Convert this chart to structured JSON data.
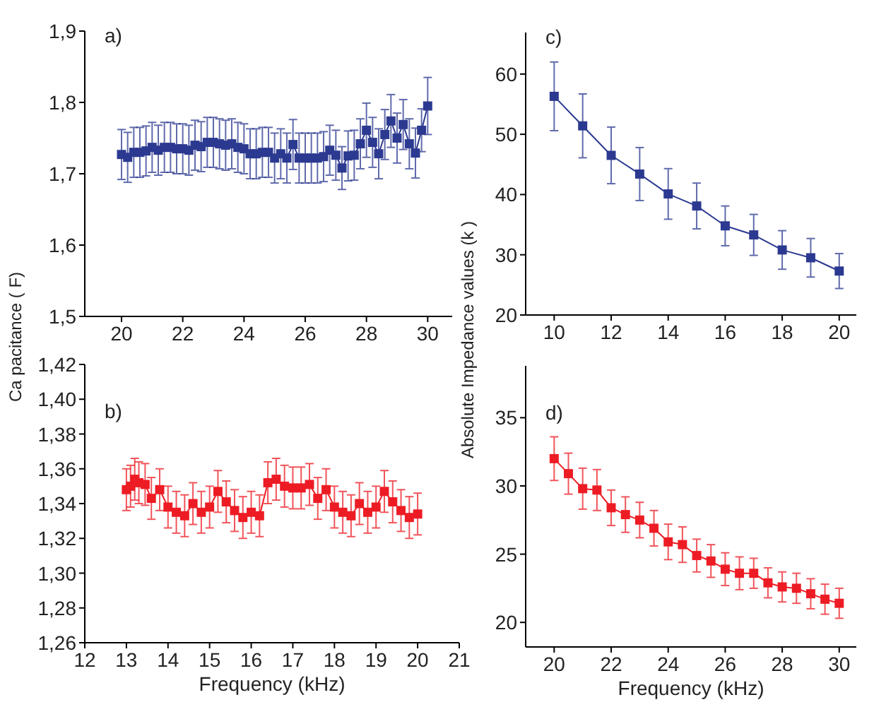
{
  "chart_data": [
    {
      "type": "line",
      "ylabel": "Ca pacitance ( F)",
      "annotations": [
        "a)"
      ],
      "marker": "square",
      "line_style": "solid",
      "grid": false,
      "xlim": [
        18.8,
        30.8
      ],
      "ylim": [
        1.5,
        1.9
      ],
      "xticks": [
        20,
        22,
        24,
        26,
        28,
        30
      ],
      "yticks": [
        {
          "value": 1.5,
          "label": "1,5"
        },
        {
          "value": 1.6,
          "label": "1,6"
        },
        {
          "value": 1.7,
          "label": "1,7"
        },
        {
          "value": 1.8,
          "label": "1,8"
        },
        {
          "value": 1.9,
          "label": "1,9"
        }
      ],
      "series": [
        {
          "color": "#2b3990",
          "x": [
            20.0,
            20.2,
            20.4,
            20.6,
            20.8,
            21.0,
            21.2,
            21.4,
            21.6,
            21.8,
            22.0,
            22.2,
            22.4,
            22.6,
            22.8,
            23.0,
            23.2,
            23.4,
            23.6,
            23.8,
            24.0,
            24.2,
            24.4,
            24.6,
            24.8,
            25.0,
            25.2,
            25.4,
            25.6,
            25.8,
            26.0,
            26.2,
            26.4,
            26.6,
            26.8,
            27.0,
            27.2,
            27.4,
            27.6,
            27.8,
            28.0,
            28.2,
            28.4,
            28.6,
            28.8,
            29.0,
            29.2,
            29.4,
            29.6,
            29.8,
            30.0
          ],
          "values": [
            1.727,
            1.723,
            1.73,
            1.73,
            1.732,
            1.737,
            1.733,
            1.737,
            1.737,
            1.735,
            1.735,
            1.733,
            1.74,
            1.738,
            1.744,
            1.744,
            1.742,
            1.74,
            1.742,
            1.737,
            1.735,
            1.728,
            1.728,
            1.73,
            1.73,
            1.722,
            1.728,
            1.722,
            1.741,
            1.722,
            1.722,
            1.722,
            1.722,
            1.724,
            1.733,
            1.726,
            1.708,
            1.725,
            1.726,
            1.742,
            1.761,
            1.744,
            1.728,
            1.755,
            1.774,
            1.75,
            1.769,
            1.742,
            1.729,
            1.761,
            1.795
          ],
          "errors": [
            0.035,
            0.035,
            0.035,
            0.035,
            0.035,
            0.035,
            0.035,
            0.035,
            0.035,
            0.035,
            0.035,
            0.035,
            0.035,
            0.035,
            0.035,
            0.035,
            0.035,
            0.035,
            0.035,
            0.035,
            0.035,
            0.035,
            0.035,
            0.035,
            0.035,
            0.035,
            0.035,
            0.035,
            0.035,
            0.035,
            0.035,
            0.035,
            0.035,
            0.035,
            0.035,
            0.035,
            0.03,
            0.035,
            0.035,
            0.035,
            0.038,
            0.035,
            0.035,
            0.035,
            0.037,
            0.035,
            0.035,
            0.035,
            0.035,
            0.03,
            0.04
          ]
        }
      ]
    },
    {
      "type": "line",
      "xlabel": "Frequency (kHz)",
      "annotations": [
        "b)"
      ],
      "marker": "square",
      "line_style": "solid",
      "grid": false,
      "xlim": [
        12,
        21
      ],
      "ylim": [
        1.26,
        1.42
      ],
      "xticks": [
        12,
        13,
        14,
        15,
        16,
        17,
        18,
        19,
        20,
        21
      ],
      "yticks": [
        {
          "value": 1.26,
          "label": "1,26"
        },
        {
          "value": 1.28,
          "label": "1,28"
        },
        {
          "value": 1.3,
          "label": "1,30"
        },
        {
          "value": 1.32,
          "label": "1,32"
        },
        {
          "value": 1.34,
          "label": "1,34"
        },
        {
          "value": 1.36,
          "label": "1,36"
        },
        {
          "value": 1.38,
          "label": "1,38"
        },
        {
          "value": 1.4,
          "label": "1,40"
        },
        {
          "value": 1.42,
          "label": "1,42"
        }
      ],
      "series": [
        {
          "color": "#ed1c24",
          "x": [
            13.0,
            13.1,
            13.2,
            13.3,
            13.45,
            13.6,
            13.8,
            14.0,
            14.2,
            14.4,
            14.6,
            14.8,
            15.0,
            15.2,
            15.4,
            15.6,
            15.8,
            16.0,
            16.2,
            16.4,
            16.6,
            16.8,
            17.0,
            17.2,
            17.4,
            17.6,
            17.8,
            18.0,
            18.2,
            18.4,
            18.6,
            18.8,
            19.0,
            19.2,
            19.4,
            19.6,
            19.8,
            20.0
          ],
          "values": [
            1.348,
            1.35,
            1.354,
            1.352,
            1.351,
            1.343,
            1.348,
            1.338,
            1.335,
            1.333,
            1.34,
            1.335,
            1.338,
            1.347,
            1.341,
            1.336,
            1.332,
            1.335,
            1.333,
            1.352,
            1.354,
            1.35,
            1.349,
            1.349,
            1.351,
            1.343,
            1.348,
            1.338,
            1.335,
            1.333,
            1.34,
            1.335,
            1.338,
            1.347,
            1.341,
            1.336,
            1.332,
            1.334
          ],
          "errors": [
            0.012,
            0.012,
            0.012,
            0.012,
            0.012,
            0.012,
            0.012,
            0.012,
            0.012,
            0.012,
            0.012,
            0.012,
            0.012,
            0.012,
            0.012,
            0.012,
            0.012,
            0.012,
            0.012,
            0.012,
            0.012,
            0.012,
            0.012,
            0.012,
            0.012,
            0.012,
            0.012,
            0.012,
            0.012,
            0.012,
            0.012,
            0.012,
            0.012,
            0.012,
            0.012,
            0.012,
            0.012,
            0.012
          ]
        }
      ]
    },
    {
      "type": "line",
      "ylabel": "Absolute Impedance values (k )",
      "annotations": [
        "c)"
      ],
      "marker": "square",
      "line_style": "solid",
      "grid": false,
      "xlim": [
        9,
        20.6
      ],
      "ylim": [
        20,
        66.9
      ],
      "xticks": [
        10,
        12,
        14,
        16,
        18,
        20
      ],
      "yticks": [
        20,
        30,
        40,
        50,
        60
      ],
      "series": [
        {
          "color": "#2b3990",
          "x": [
            10,
            11,
            12,
            13,
            14,
            15,
            16,
            17,
            18,
            19,
            20
          ],
          "values": [
            56.3,
            51.4,
            46.5,
            43.4,
            40.1,
            38.1,
            34.8,
            33.3,
            30.8,
            29.5,
            27.3
          ],
          "errors": [
            5.7,
            5.3,
            4.7,
            4.4,
            4.2,
            3.8,
            3.3,
            3.4,
            3.2,
            3.2,
            2.9
          ]
        }
      ]
    },
    {
      "type": "line",
      "xlabel": "Frequency (kHz)",
      "annotations": [
        "d)"
      ],
      "marker": "square",
      "line_style": "solid",
      "grid": false,
      "xlim": [
        19,
        30.6
      ],
      "ylim": [
        18.2,
        38.8
      ],
      "xticks": [
        20,
        22,
        24,
        26,
        28,
        30
      ],
      "yticks": [
        20,
        25,
        30,
        35
      ],
      "series": [
        {
          "color": "#ed1c24",
          "x": [
            20,
            20.5,
            21,
            21.5,
            22,
            22.5,
            23,
            23.5,
            24,
            24.5,
            25,
            25.5,
            26,
            26.5,
            27,
            27.5,
            28,
            28.5,
            29,
            29.5,
            30
          ],
          "values": [
            32.0,
            30.9,
            29.8,
            29.7,
            28.4,
            27.9,
            27.5,
            26.9,
            25.9,
            25.7,
            24.9,
            24.5,
            23.9,
            23.6,
            23.6,
            22.9,
            22.6,
            22.5,
            22.1,
            21.7,
            21.4
          ],
          "errors": [
            1.6,
            1.5,
            1.5,
            1.5,
            1.3,
            1.3,
            1.3,
            1.3,
            1.3,
            1.3,
            1.2,
            1.2,
            1.2,
            1.2,
            1.1,
            1.1,
            1.1,
            1.1,
            1.1,
            1.1,
            1.1
          ]
        }
      ]
    }
  ]
}
